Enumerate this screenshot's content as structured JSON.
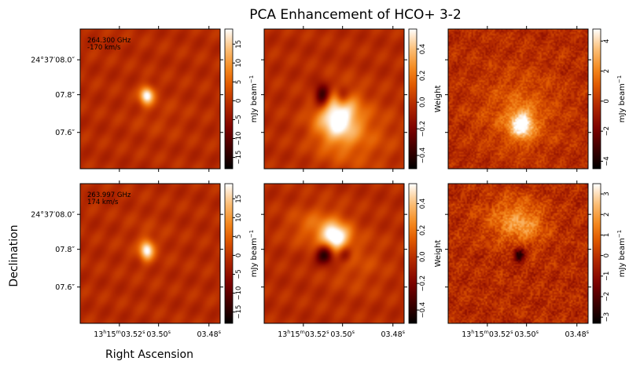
{
  "title": "PCA Enhancement of HCO+ 3-2",
  "colors": {
    "cmap": [
      "#000000",
      "#7a0000",
      "#b01c00",
      "#e05a00",
      "#f58a1e",
      "#fbc07a",
      "#ffffff"
    ],
    "background_red": "#b52a00"
  },
  "chart_data": {
    "type": "heatmap",
    "xlabel": "Right Ascension",
    "ylabel": "Declination",
    "x_ticks": [
      {
        "label": "13h15m03.52s",
        "parts": [
          "13",
          "h",
          "15",
          "m",
          "03.52",
          "s"
        ]
      },
      {
        "label": "03.50s",
        "parts": [
          "",
          "",
          "",
          "",
          "03.50",
          "s"
        ]
      },
      {
        "label": "03.48s",
        "parts": [
          "",
          "",
          "",
          "",
          "03.48",
          "s"
        ]
      }
    ],
    "y_ticks": [
      "24°37′08.0″",
      "07.8″",
      "07.6″"
    ],
    "panels": [
      {
        "row": 0,
        "col": 0,
        "annotation": [
          "264.300 GHz",
          "-170 km/s"
        ],
        "colorbar_label": "mJy beam−1",
        "colorbar_ticks": [
          15,
          10,
          5,
          0,
          -5,
          -10,
          -15
        ],
        "vmin": -18,
        "vmax": 19,
        "features": [
          {
            "type": "peak",
            "x": 0.47,
            "y": 0.47,
            "amp": 1.0,
            "sx": 0.035,
            "sy": 0.045
          },
          {
            "type": "bump",
            "x": 0.55,
            "y": 0.62,
            "amp": 0.08,
            "sx": 0.15,
            "sy": 0.12
          }
        ]
      },
      {
        "row": 0,
        "col": 1,
        "annotation": [],
        "colorbar_label": "Weight",
        "colorbar_ticks": [
          0.4,
          0.2,
          0.0,
          -0.2,
          -0.4
        ],
        "vmin": -0.5,
        "vmax": 0.55,
        "features": [
          {
            "type": "peak",
            "x": 0.52,
            "y": 0.62,
            "amp": 0.95,
            "sx": 0.1,
            "sy": 0.12
          },
          {
            "type": "bump",
            "x": 0.62,
            "y": 0.75,
            "amp": 0.35,
            "sx": 0.2,
            "sy": 0.18
          },
          {
            "type": "hole",
            "x": 0.41,
            "y": 0.47,
            "amp": 1.0,
            "sx": 0.04,
            "sy": 0.06
          },
          {
            "type": "hole",
            "x": 0.55,
            "y": 0.47,
            "amp": 0.55,
            "sx": 0.035,
            "sy": 0.05
          }
        ]
      },
      {
        "row": 0,
        "col": 2,
        "annotation": [],
        "colorbar_label": "mJy beam−1",
        "colorbar_ticks": [
          4,
          2,
          0,
          -2,
          -4
        ],
        "vmin": -4.5,
        "vmax": 4.8,
        "features": [
          {
            "type": "peak",
            "x": 0.52,
            "y": 0.68,
            "amp": 0.9,
            "sx": 0.06,
            "sy": 0.07
          },
          {
            "type": "bump",
            "x": 0.5,
            "y": 0.58,
            "amp": 0.35,
            "sx": 0.2,
            "sy": 0.2
          },
          {
            "type": "noise",
            "amp": 0.25
          }
        ]
      },
      {
        "row": 1,
        "col": 0,
        "annotation": [
          "263.997 GHz",
          "174 km/s"
        ],
        "colorbar_label": "mJy beam−1",
        "colorbar_ticks": [
          15,
          10,
          5,
          0,
          -5,
          -10,
          -15
        ],
        "vmin": -18,
        "vmax": 19,
        "features": [
          {
            "type": "peak",
            "x": 0.47,
            "y": 0.47,
            "amp": 0.95,
            "sx": 0.035,
            "sy": 0.05
          },
          {
            "type": "bump",
            "x": 0.47,
            "y": 0.4,
            "amp": 0.08,
            "sx": 0.12,
            "sy": 0.14
          }
        ]
      },
      {
        "row": 1,
        "col": 1,
        "annotation": [],
        "colorbar_label": "Weight",
        "colorbar_ticks": [
          0.4,
          0.2,
          0.0,
          -0.2,
          -0.4
        ],
        "vmin": -0.5,
        "vmax": 0.55,
        "features": [
          {
            "type": "peak",
            "x": 0.5,
            "y": 0.38,
            "amp": 1.0,
            "sx": 0.07,
            "sy": 0.07
          },
          {
            "type": "bump",
            "x": 0.38,
            "y": 0.3,
            "amp": 0.4,
            "sx": 0.14,
            "sy": 0.1
          },
          {
            "type": "bump",
            "x": 0.65,
            "y": 0.55,
            "amp": 0.2,
            "sx": 0.15,
            "sy": 0.15
          },
          {
            "type": "hole",
            "x": 0.43,
            "y": 0.5,
            "amp": 1.0,
            "sx": 0.045,
            "sy": 0.05
          },
          {
            "type": "hole",
            "x": 0.57,
            "y": 0.5,
            "amp": 0.5,
            "sx": 0.035,
            "sy": 0.04
          }
        ]
      },
      {
        "row": 1,
        "col": 2,
        "annotation": [],
        "colorbar_label": "mJy beam−1",
        "colorbar_ticks": [
          3,
          2,
          1,
          0,
          -1,
          -2,
          -3
        ],
        "vmin": -3.3,
        "vmax": 3.5,
        "features": [
          {
            "type": "bump",
            "x": 0.45,
            "y": 0.25,
            "amp": 0.45,
            "sx": 0.15,
            "sy": 0.12
          },
          {
            "type": "bump",
            "x": 0.55,
            "y": 0.3,
            "amp": 0.3,
            "sx": 0.1,
            "sy": 0.1
          },
          {
            "type": "hole",
            "x": 0.5,
            "y": 0.5,
            "amp": 0.95,
            "sx": 0.03,
            "sy": 0.035
          },
          {
            "type": "noise",
            "amp": 0.3
          }
        ]
      }
    ]
  }
}
